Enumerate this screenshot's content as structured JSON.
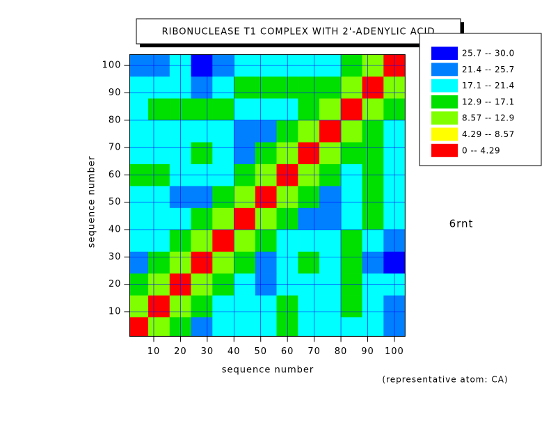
{
  "chart_data": {
    "type": "contour",
    "title": "RIBONUCLEASE T1 COMPLEX WITH 2'-ADENYLIC ACID",
    "x_label": "sequence number",
    "y_label": "sequence number",
    "label": "6rnt",
    "note": "(representative atom: CA)",
    "xlim": [
      1,
      104
    ],
    "ylim": [
      1,
      104
    ],
    "xticks": [
      10,
      20,
      30,
      40,
      50,
      60,
      70,
      80,
      90,
      100
    ],
    "yticks": [
      10,
      20,
      30,
      40,
      50,
      60,
      70,
      80,
      90,
      100
    ],
    "grid": true,
    "grid_color": "#0000ff",
    "x": [
      4,
      12,
      20,
      28,
      36,
      44,
      52,
      60,
      68,
      76,
      84,
      92,
      100
    ],
    "y": [
      4,
      12,
      20,
      28,
      36,
      44,
      52,
      60,
      68,
      76,
      84,
      92,
      100
    ],
    "z": [
      [
        3.8,
        11,
        16,
        24,
        20,
        19,
        18,
        17,
        19,
        20,
        18,
        20,
        22
      ],
      [
        11,
        3.8,
        11,
        16,
        20,
        21,
        18,
        16,
        18,
        19,
        17,
        20,
        22
      ],
      [
        16,
        11,
        3.8,
        11,
        16,
        20,
        22,
        20,
        18,
        19,
        16,
        18,
        21
      ],
      [
        24,
        16,
        11,
        3.8,
        10,
        15,
        22,
        19,
        17,
        18,
        16,
        22,
        27
      ],
      [
        20,
        20,
        16,
        10,
        3.8,
        10,
        17,
        20,
        19,
        18,
        16,
        20,
        25
      ],
      [
        19,
        21,
        20,
        15,
        10,
        3.8,
        10,
        16,
        22,
        22,
        18,
        17,
        20
      ],
      [
        18,
        18,
        22,
        22,
        17,
        10,
        3.8,
        9,
        17,
        23,
        20,
        16,
        19
      ],
      [
        17,
        16,
        20,
        19,
        20,
        16,
        9,
        3.8,
        10,
        15,
        19,
        17,
        18
      ],
      [
        19,
        18,
        18,
        17,
        19,
        22,
        17,
        10,
        3.8,
        9,
        13,
        17,
        20
      ],
      [
        20,
        19,
        19,
        18,
        18,
        22,
        23,
        15,
        9,
        3.8,
        10,
        15,
        20
      ],
      [
        18,
        17,
        16,
        16,
        16,
        18,
        20,
        19,
        13,
        10,
        3.8,
        10,
        16
      ],
      [
        20,
        20,
        18,
        22,
        20,
        17,
        16,
        17,
        17,
        15,
        10,
        3.8,
        10
      ],
      [
        22,
        22,
        21,
        27,
        25,
        20,
        19,
        18,
        20,
        20,
        16,
        10,
        3.8
      ]
    ],
    "levels": [
      0,
      4.29,
      8.57,
      12.9,
      17.1,
      21.4,
      25.7,
      30.0
    ],
    "colors": [
      "#ff0000",
      "#ffff00",
      "#80ff00",
      "#00e000",
      "#00ffff",
      "#0080ff",
      "#0000ff"
    ],
    "legend": [
      "25.7  --  30.0",
      "21.4  --  25.7",
      "17.1  --  21.4",
      "12.9  --  17.1",
      "8.57  --  12.9",
      "4.29  --  8.57",
      "0  --  4.29"
    ]
  }
}
